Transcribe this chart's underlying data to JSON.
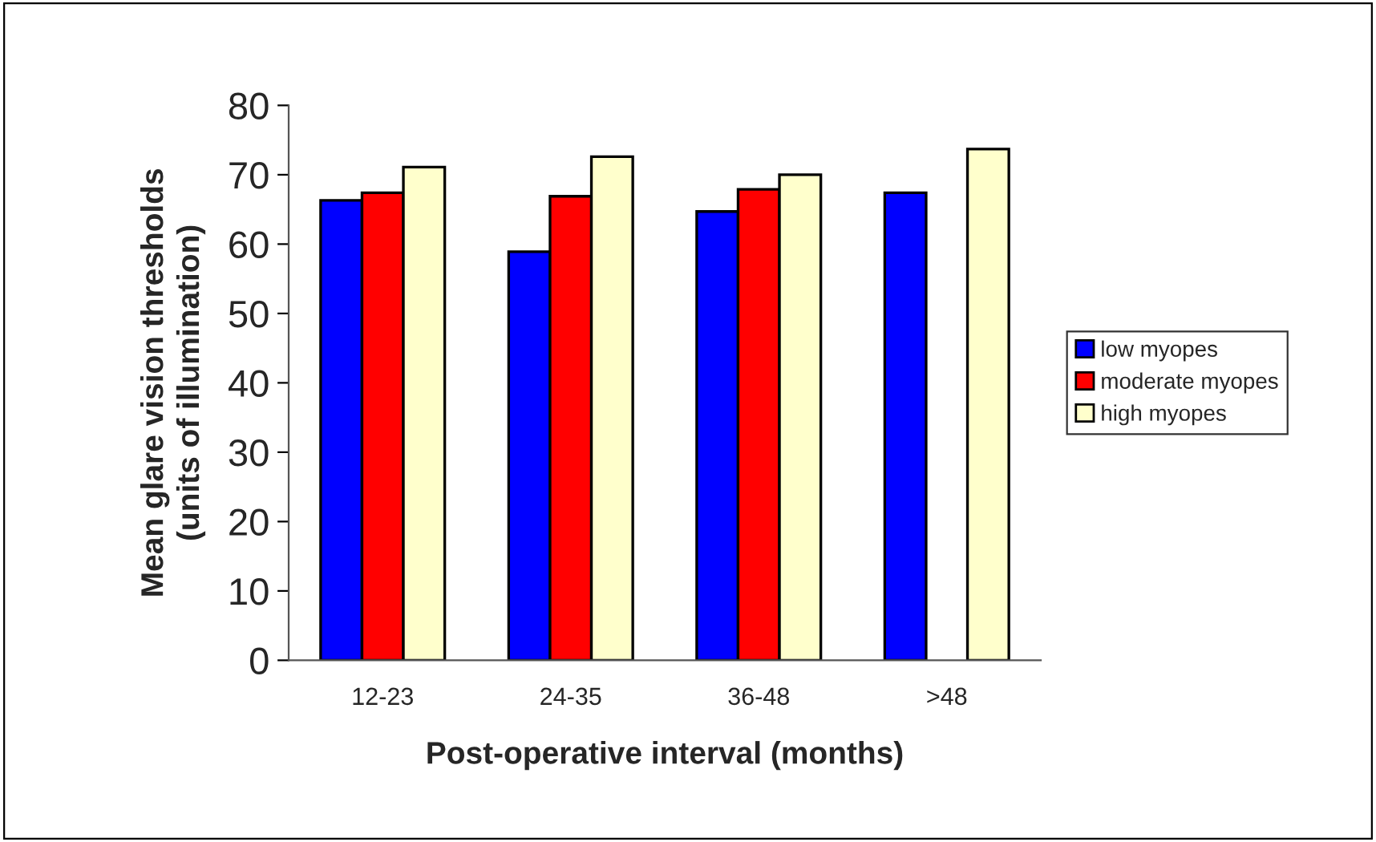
{
  "chart_data": {
    "type": "bar",
    "xlabel": "Post-operative interval (months)",
    "ylabel": "Mean glare vision thresholds\n(units of illumination)",
    "categories": [
      "12-23",
      "24-35",
      "36-48",
      ">48"
    ],
    "series": [
      {
        "name": "low myopes",
        "color": "#0000ff",
        "values": [
          66.3,
          58.9,
          64.7,
          67.4
        ]
      },
      {
        "name": "moderate myopes",
        "color": "#ff0000",
        "values": [
          67.4,
          66.9,
          67.9,
          null
        ]
      },
      {
        "name": "high myopes",
        "color": "#ffffcc",
        "values": [
          71.1,
          72.6,
          70.0,
          73.7
        ]
      }
    ],
    "ylim": [
      0,
      80
    ],
    "yticks": [
      0,
      10,
      20,
      30,
      40,
      50,
      60,
      70,
      80
    ],
    "grid": false,
    "legend": "right"
  }
}
